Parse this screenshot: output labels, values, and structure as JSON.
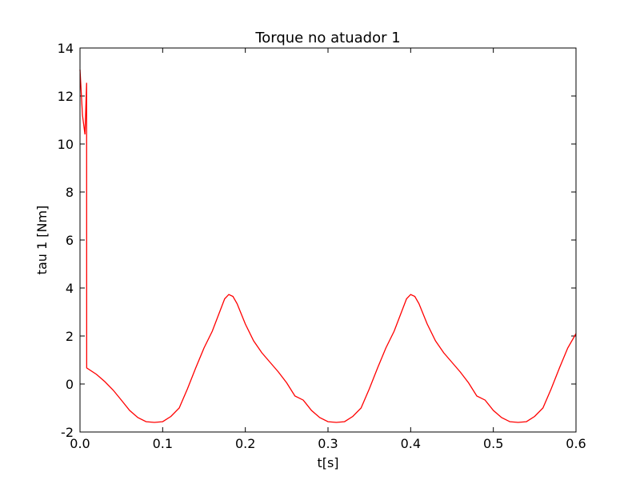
{
  "chart_data": {
    "type": "line",
    "title": "Torque no atuador 1",
    "x_label": "t[s]",
    "y_label": "tau 1 [Nm]",
    "x": [
      0,
      0.003,
      0.006,
      0.008,
      0.0081,
      0.02,
      0.03,
      0.04,
      0.05,
      0.06,
      0.07,
      0.08,
      0.09,
      0.1,
      0.11,
      0.12,
      0.13,
      0.14,
      0.15,
      0.16,
      0.17,
      0.175,
      0.18,
      0.185,
      0.19,
      0.2,
      0.21,
      0.22,
      0.23,
      0.24,
      0.25,
      0.26,
      0.27,
      0.28,
      0.29,
      0.3,
      0.31,
      0.32,
      0.33,
      0.34,
      0.35,
      0.36,
      0.37,
      0.38,
      0.39,
      0.395,
      0.4,
      0.405,
      0.41,
      0.42,
      0.43,
      0.44,
      0.45,
      0.46,
      0.47,
      0.48,
      0.49,
      0.5,
      0.51,
      0.52,
      0.53,
      0.54,
      0.55,
      0.56,
      0.57,
      0.58,
      0.59,
      0.6
    ],
    "series": [
      {
        "name": "tau 1",
        "color": "#ff0000",
        "values": [
          13.1,
          11.2,
          10.4,
          12.55,
          0.67,
          0.4,
          0.1,
          -0.25,
          -0.67,
          -1.1,
          -1.4,
          -1.57,
          -1.6,
          -1.57,
          -1.35,
          -1.0,
          -0.2,
          0.67,
          1.5,
          2.2,
          3.1,
          3.55,
          3.73,
          3.65,
          3.35,
          2.5,
          1.8,
          1.3,
          0.9,
          0.5,
          0.05,
          -0.5,
          -0.67,
          -1.1,
          -1.4,
          -1.57,
          -1.6,
          -1.57,
          -1.35,
          -1.0,
          -0.2,
          0.67,
          1.5,
          2.2,
          3.1,
          3.55,
          3.73,
          3.65,
          3.35,
          2.5,
          1.8,
          1.3,
          0.9,
          0.5,
          0.05,
          -0.5,
          -0.67,
          -1.1,
          -1.4,
          -1.57,
          -1.6,
          -1.57,
          -1.35,
          -1.0,
          -0.2,
          0.67,
          1.5,
          2.1
        ]
      }
    ],
    "xlim": [
      0,
      0.6
    ],
    "ylim": [
      -2,
      14
    ],
    "xticks": [
      {
        "value": 0,
        "label": "0.0"
      },
      0.1,
      0.2,
      0.3,
      0.4,
      0.5,
      0.6
    ],
    "yticks": [
      -2,
      0,
      2,
      4,
      6,
      8,
      10,
      12,
      14
    ]
  }
}
